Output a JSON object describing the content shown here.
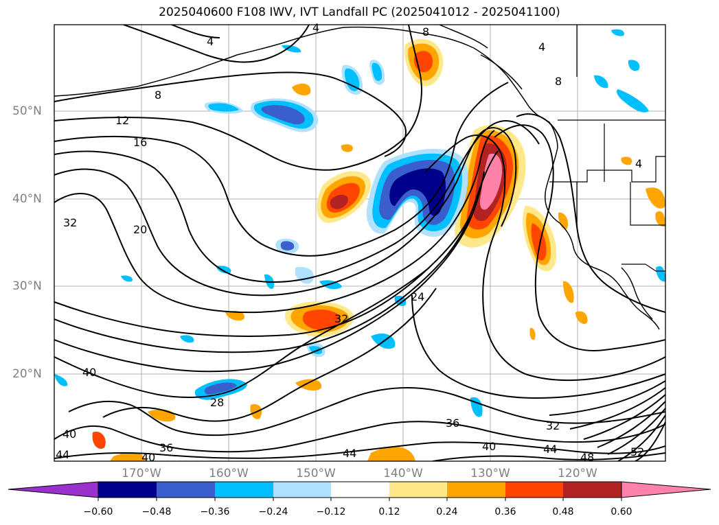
{
  "title": "2025040600 F108 IWV, IVT Landfall PC (2025041012 - 2025041100)",
  "lat_labels": [
    "50°N",
    "40°N",
    "30°N",
    "20°N"
  ],
  "lon_labels": [
    "170°W",
    "160°W",
    "150°W",
    "140°W",
    "130°W",
    "120°W"
  ],
  "colorbar": {
    "tick_labels": [
      "−0.60",
      "−0.48",
      "−0.36",
      "−0.24",
      "−0.12",
      "0.12",
      "0.24",
      "0.36",
      "0.48",
      "0.60"
    ],
    "colors": [
      "#9932cc",
      "#00008b",
      "#3a5fcd",
      "#00bfff",
      "#b0e2ff",
      "#ffffff",
      "#ffe88a",
      "#ffa500",
      "#ff4500",
      "#b22222",
      "#ff82ab"
    ]
  },
  "contour_labels": [
    "4",
    "4",
    "8",
    "8",
    "12",
    "16",
    "20",
    "24",
    "28",
    "32",
    "32",
    "32",
    "36",
    "36",
    "40",
    "40",
    "40",
    "40",
    "44",
    "44",
    "44",
    "48",
    "52",
    "4",
    "8",
    "4"
  ],
  "colors": {
    "coast": "#000000",
    "grid": "#b0b0b0",
    "contour": "#000000"
  }
}
